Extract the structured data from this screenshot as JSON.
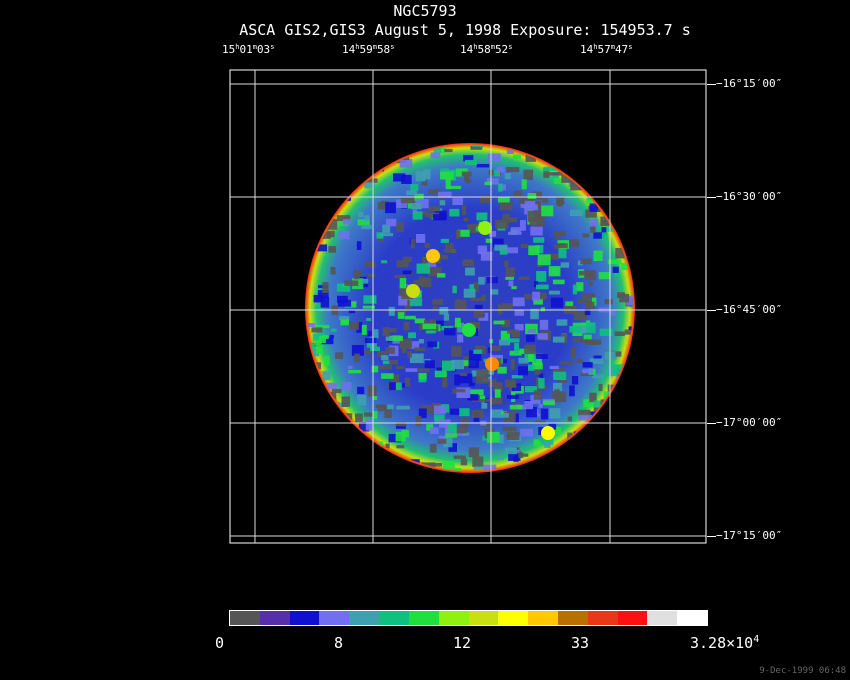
{
  "header": {
    "object_name": "NGC5793",
    "subtitle": "ASCA GIS2,GIS3 August 5, 1998 Exposure: 154953.7 s"
  },
  "ra_labels": [
    {
      "h": "15",
      "m": "01",
      "s": "03"
    },
    {
      "h": "14",
      "m": "59",
      "s": "58"
    },
    {
      "h": "14",
      "m": "58",
      "s": "52"
    },
    {
      "h": "14",
      "m": "57",
      "s": "47"
    }
  ],
  "dec_labels": [
    "−16°15′00″",
    "−16°30′00″",
    "−16°45′00″",
    "−17°00′00″",
    "−17°15′00″"
  ],
  "colorbar": {
    "colors": [
      "#555555",
      "#5530a8",
      "#1010d0",
      "#7070f0",
      "#3ea0b0",
      "#10c080",
      "#20e040",
      "#90f010",
      "#c8e010",
      "#ffff00",
      "#ffc800",
      "#b87000",
      "#e83818",
      "#ff1010",
      "#e0e0e0",
      "#ffffff"
    ],
    "labels": [
      "0",
      "8",
      "12",
      "33",
      "3.28×10"
    ],
    "exponent": "4"
  },
  "timestamp": "9-Dec-1999 06:48"
}
